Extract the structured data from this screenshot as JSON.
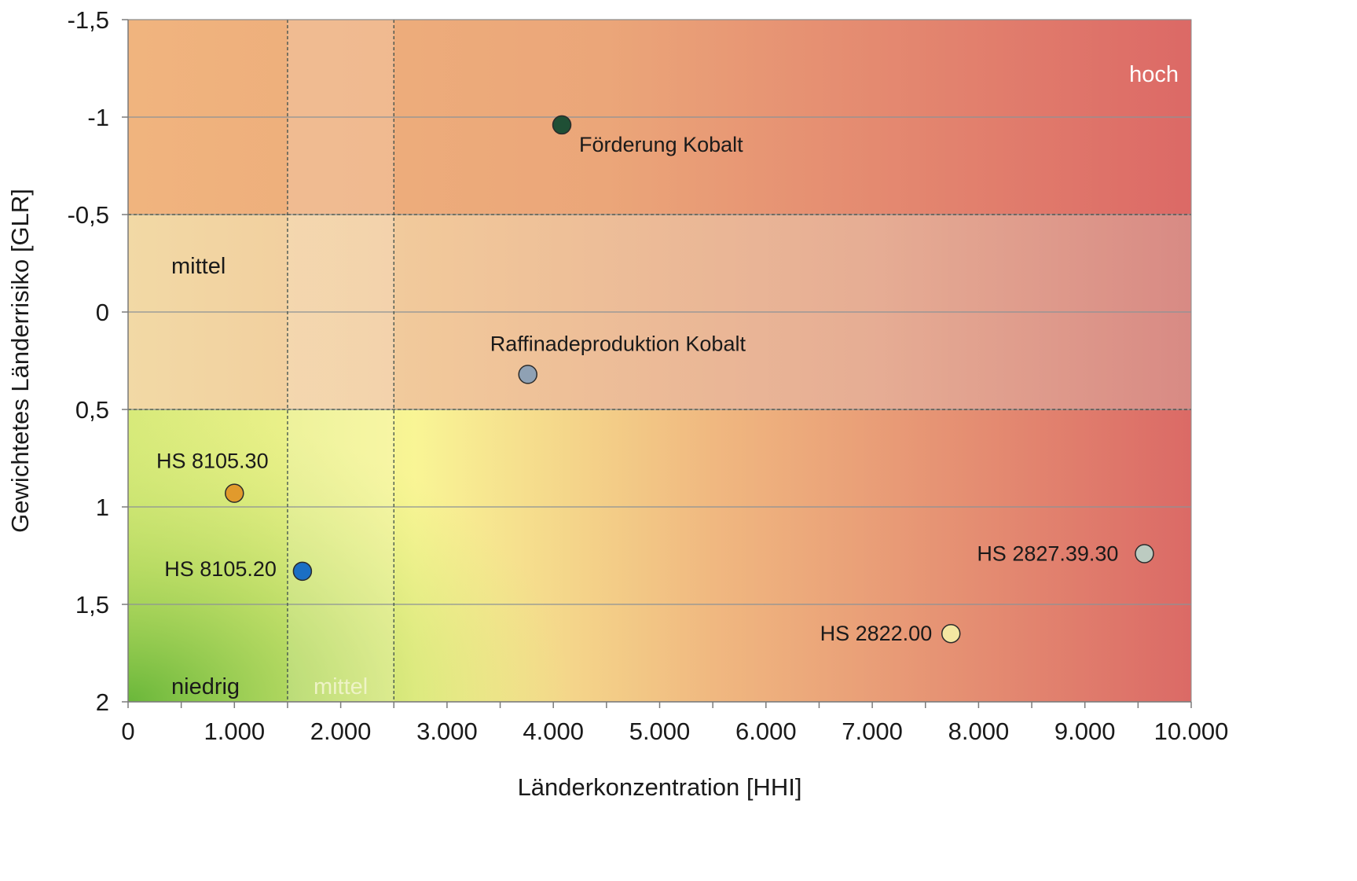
{
  "chart_data": {
    "type": "scatter",
    "title": "",
    "xlabel": "Länderkonzentration [HHI]",
    "ylabel": "Gewichtetes Länderrisiko [GLR]",
    "xlim": [
      0,
      10000
    ],
    "ylim": [
      -1.5,
      2
    ],
    "y_inverted": true,
    "x_ticks": [
      "0",
      "1.000",
      "2.000",
      "3.000",
      "4.000",
      "5.000",
      "6.000",
      "7.000",
      "8.000",
      "9.000",
      "10.000"
    ],
    "y_ticks": [
      "-1,5",
      "-1",
      "-0,5",
      "0",
      "0,5",
      "1",
      "1,5",
      "2"
    ],
    "horizontal_gridlines": true,
    "thresholds": {
      "hhi": [
        1500,
        2500
      ],
      "glr": [
        -0.5,
        0.5
      ]
    },
    "zone_labels": {
      "high": "hoch",
      "medium": "mittel",
      "low": "niedrig",
      "medium_hhi": "mittel"
    },
    "points": [
      {
        "label": "Förderung Kobalt",
        "x": 4080,
        "y": -0.96,
        "color": "#1f4f35"
      },
      {
        "label": "Raffinadeproduktion Kobalt",
        "x": 3760,
        "y": 0.32,
        "color": "#8fa1b4"
      },
      {
        "label": "HS 8105.30",
        "x": 1000,
        "y": 0.93,
        "color": "#e19a2c"
      },
      {
        "label": "HS 8105.20",
        "x": 1640,
        "y": 1.33,
        "color": "#1b6fc4"
      },
      {
        "label": "HS 2827.39.30",
        "x": 9560,
        "y": 1.24,
        "color": "#bccbc1"
      },
      {
        "label": "HS 2822.00",
        "x": 7740,
        "y": 1.65,
        "color": "#f4e7a2"
      }
    ]
  }
}
